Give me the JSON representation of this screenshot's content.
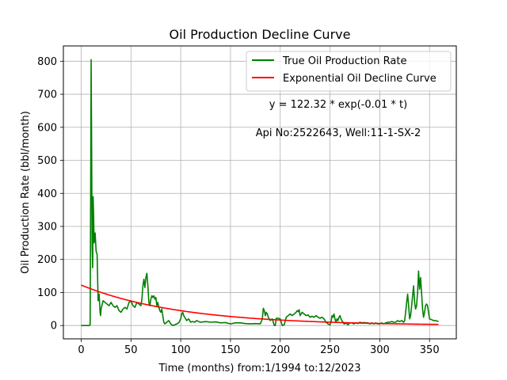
{
  "chart_data": {
    "type": "line",
    "title": "Oil Production Decline Curve",
    "xlabel": "Time (months) from:1/1994 to:12/2023",
    "ylabel": "Oil Production Rate (bbl/month)",
    "xlim": [
      -17.9,
      376.9
    ],
    "ylim": [
      -40.3,
      846.3
    ],
    "xticks": [
      0,
      50,
      100,
      150,
      200,
      250,
      300,
      350
    ],
    "yticks": [
      0,
      100,
      200,
      300,
      400,
      500,
      600,
      700,
      800
    ],
    "grid": true,
    "legend_position": "top-right",
    "annotations": [
      "y = 122.32 * exp(-0.01 * t)",
      "Api No:2522643, Well:11-1-SX-2"
    ],
    "series": [
      {
        "name": "True Oil Production Rate",
        "color": "#008000",
        "points": [
          [
            0,
            0
          ],
          [
            5,
            0
          ],
          [
            8,
            0
          ],
          [
            9,
            2
          ],
          [
            9.5,
            380
          ],
          [
            10,
            805
          ],
          [
            10.5,
            530
          ],
          [
            11,
            240
          ],
          [
            11.5,
            175
          ],
          [
            12,
            390
          ],
          [
            12.5,
            330
          ],
          [
            13,
            250
          ],
          [
            14,
            280
          ],
          [
            15,
            225
          ],
          [
            16,
            215
          ],
          [
            17,
            75
          ],
          [
            18,
            95
          ],
          [
            19,
            40
          ],
          [
            19.5,
            30
          ],
          [
            20,
            50
          ],
          [
            22,
            75
          ],
          [
            24,
            70
          ],
          [
            26,
            65
          ],
          [
            28,
            60
          ],
          [
            30,
            70
          ],
          [
            32,
            60
          ],
          [
            34,
            55
          ],
          [
            36,
            60
          ],
          [
            38,
            45
          ],
          [
            40,
            40
          ],
          [
            42,
            50
          ],
          [
            44,
            55
          ],
          [
            46,
            50
          ],
          [
            48,
            70
          ],
          [
            50,
            75
          ],
          [
            52,
            60
          ],
          [
            54,
            55
          ],
          [
            56,
            70
          ],
          [
            58,
            65
          ],
          [
            60,
            60
          ],
          [
            61,
            80
          ],
          [
            62,
            120
          ],
          [
            63,
            140
          ],
          [
            64,
            115
          ],
          [
            65,
            145
          ],
          [
            66,
            158
          ],
          [
            67,
            120
          ],
          [
            68,
            70
          ],
          [
            69,
            60
          ],
          [
            70,
            80
          ],
          [
            71,
            90
          ],
          [
            72,
            85
          ],
          [
            73,
            90
          ],
          [
            74,
            80
          ],
          [
            75,
            85
          ],
          [
            76,
            60
          ],
          [
            77,
            70
          ],
          [
            78,
            55
          ],
          [
            79,
            45
          ],
          [
            80,
            40
          ],
          [
            81,
            50
          ],
          [
            82,
            30
          ],
          [
            83,
            10
          ],
          [
            84,
            5
          ],
          [
            86,
            10
          ],
          [
            88,
            15
          ],
          [
            90,
            5
          ],
          [
            92,
            0
          ],
          [
            94,
            2
          ],
          [
            96,
            5
          ],
          [
            98,
            8
          ],
          [
            100,
            20
          ],
          [
            101,
            35
          ],
          [
            102,
            40
          ],
          [
            103,
            30
          ],
          [
            104,
            25
          ],
          [
            106,
            15
          ],
          [
            108,
            20
          ],
          [
            110,
            10
          ],
          [
            112,
            12
          ],
          [
            114,
            10
          ],
          [
            116,
            15
          ],
          [
            118,
            12
          ],
          [
            120,
            10
          ],
          [
            125,
            12
          ],
          [
            130,
            10
          ],
          [
            135,
            11
          ],
          [
            140,
            8
          ],
          [
            145,
            9
          ],
          [
            150,
            5
          ],
          [
            155,
            8
          ],
          [
            160,
            8
          ],
          [
            165,
            6
          ],
          [
            170,
            5
          ],
          [
            175,
            6
          ],
          [
            180,
            5
          ],
          [
            182,
            20
          ],
          [
            183,
            52
          ],
          [
            184,
            45
          ],
          [
            185,
            30
          ],
          [
            186,
            40
          ],
          [
            187,
            35
          ],
          [
            188,
            25
          ],
          [
            189,
            20
          ],
          [
            190,
            15
          ],
          [
            191,
            18
          ],
          [
            192,
            20
          ],
          [
            193,
            10
          ],
          [
            194,
            0
          ],
          [
            195,
            0
          ],
          [
            196,
            22
          ],
          [
            198,
            22
          ],
          [
            200,
            20
          ],
          [
            202,
            0
          ],
          [
            204,
            2
          ],
          [
            206,
            25
          ],
          [
            208,
            30
          ],
          [
            210,
            35
          ],
          [
            212,
            30
          ],
          [
            214,
            35
          ],
          [
            216,
            40
          ],
          [
            217,
            45
          ],
          [
            218,
            42
          ],
          [
            219,
            48
          ],
          [
            220,
            30
          ],
          [
            221,
            35
          ],
          [
            222,
            40
          ],
          [
            224,
            35
          ],
          [
            226,
            30
          ],
          [
            228,
            32
          ],
          [
            230,
            25
          ],
          [
            232,
            28
          ],
          [
            234,
            25
          ],
          [
            236,
            30
          ],
          [
            238,
            25
          ],
          [
            240,
            22
          ],
          [
            242,
            25
          ],
          [
            244,
            20
          ],
          [
            246,
            10
          ],
          [
            248,
            5
          ],
          [
            250,
            2
          ],
          [
            251,
            10
          ],
          [
            252,
            30
          ],
          [
            253,
            25
          ],
          [
            254,
            35
          ],
          [
            255,
            20
          ],
          [
            256,
            10
          ],
          [
            257,
            20
          ],
          [
            258,
            15
          ],
          [
            259,
            25
          ],
          [
            260,
            30
          ],
          [
            261,
            20
          ],
          [
            262,
            15
          ],
          [
            263,
            10
          ],
          [
            264,
            5
          ],
          [
            265,
            5
          ],
          [
            266,
            8
          ],
          [
            267,
            5
          ],
          [
            268,
            2
          ],
          [
            269,
            5
          ],
          [
            270,
            8
          ],
          [
            272,
            8
          ],
          [
            274,
            5
          ],
          [
            276,
            8
          ],
          [
            278,
            6
          ],
          [
            280,
            10
          ],
          [
            282,
            8
          ],
          [
            284,
            9
          ],
          [
            286,
            8
          ],
          [
            288,
            8
          ],
          [
            290,
            5
          ],
          [
            292,
            8
          ],
          [
            294,
            5
          ],
          [
            296,
            8
          ],
          [
            298,
            5
          ],
          [
            300,
            5
          ],
          [
            302,
            8
          ],
          [
            304,
            5
          ],
          [
            306,
            8
          ],
          [
            308,
            10
          ],
          [
            310,
            10
          ],
          [
            312,
            12
          ],
          [
            314,
            10
          ],
          [
            316,
            10
          ],
          [
            318,
            15
          ],
          [
            320,
            12
          ],
          [
            322,
            15
          ],
          [
            324,
            10
          ],
          [
            325,
            15
          ],
          [
            326,
            40
          ],
          [
            327,
            70
          ],
          [
            328,
            95
          ],
          [
            329,
            60
          ],
          [
            330,
            20
          ],
          [
            331,
            30
          ],
          [
            332,
            60
          ],
          [
            333,
            90
          ],
          [
            334,
            120
          ],
          [
            335,
            70
          ],
          [
            336,
            50
          ],
          [
            337,
            60
          ],
          [
            338,
            100
          ],
          [
            339,
            165
          ],
          [
            340,
            110
          ],
          [
            341,
            145
          ],
          [
            342,
            100
          ],
          [
            343,
            50
          ],
          [
            344,
            25
          ],
          [
            345,
            40
          ],
          [
            346,
            60
          ],
          [
            347,
            65
          ],
          [
            348,
            60
          ],
          [
            349,
            40
          ],
          [
            350,
            20
          ],
          [
            352,
            18
          ],
          [
            354,
            15
          ],
          [
            356,
            15
          ],
          [
            358,
            13
          ],
          [
            359,
            12
          ]
        ]
      },
      {
        "name": "Exponential Oil Decline Curve",
        "color": "#ff0000",
        "equation": {
          "a": 122.32,
          "b": -0.01
        },
        "x_range": [
          0,
          359
        ]
      }
    ]
  }
}
